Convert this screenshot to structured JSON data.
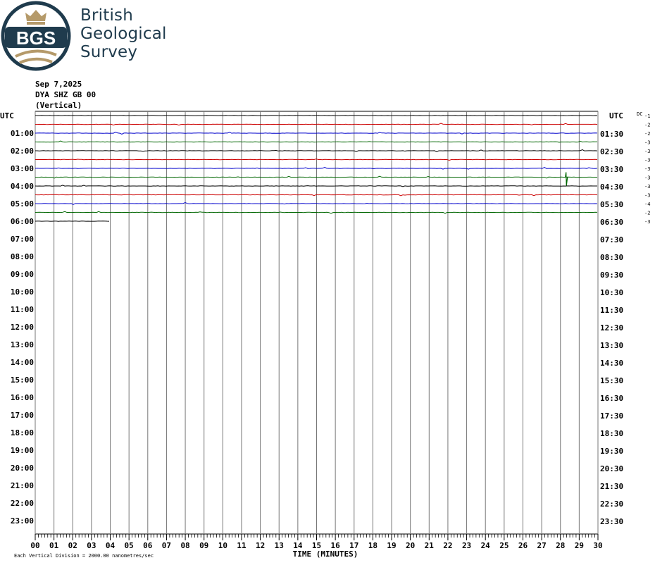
{
  "logo": {
    "abbrev": "BGS",
    "name_line1": "British",
    "name_line2": "Geological",
    "name_line3": "Survey"
  },
  "header": {
    "date": "Sep 7,2025",
    "station": "DYA SHZ GB 00",
    "component": "(Vertical)"
  },
  "colors": {
    "trace_black": "#000000",
    "trace_red": "#cc0000",
    "trace_blue": "#0000cc",
    "trace_green": "#006600",
    "grid": "#777777"
  },
  "chart_data": {
    "type": "line",
    "title": "",
    "xlabel": "TIME (MINUTES)",
    "x_ticks": [
      "00",
      "01",
      "02",
      "03",
      "04",
      "05",
      "06",
      "07",
      "08",
      "09",
      "10",
      "11",
      "12",
      "13",
      "14",
      "15",
      "16",
      "17",
      "18",
      "19",
      "20",
      "21",
      "22",
      "23",
      "24",
      "25",
      "26",
      "27",
      "28",
      "29",
      "30"
    ],
    "xlim": [
      0,
      30
    ],
    "left_axis_label": "UTC",
    "right_axis_label": "UTC",
    "left_hours": [
      "01:00",
      "02:00",
      "03:00",
      "04:00",
      "05:00",
      "06:00",
      "07:00",
      "08:00",
      "09:00",
      "10:00",
      "11:00",
      "12:00",
      "13:00",
      "14:00",
      "15:00",
      "16:00",
      "17:00",
      "18:00",
      "19:00",
      "20:00",
      "21:00",
      "22:00",
      "23:00"
    ],
    "right_hours": [
      "01:30",
      "02:30",
      "03:30",
      "04:30",
      "05:30",
      "06:30",
      "07:30",
      "08:30",
      "09:30",
      "10:30",
      "11:30",
      "12:30",
      "13:30",
      "14:30",
      "15:30",
      "16:30",
      "17:30",
      "18:30",
      "19:30",
      "20:30",
      "21:30",
      "22:30",
      "23:30"
    ],
    "dc_label": "DC",
    "dc_offsets": [
      "-1",
      "-2",
      "-2",
      "-3",
      "-3",
      "-3",
      "-3",
      "-3",
      "-3",
      "-3",
      "-4",
      "-2",
      "-3"
    ],
    "traces": [
      {
        "color": "black",
        "end_minute": 30
      },
      {
        "color": "red",
        "end_minute": 30
      },
      {
        "color": "blue",
        "end_minute": 30
      },
      {
        "color": "green",
        "end_minute": 30
      },
      {
        "color": "black",
        "end_minute": 30
      },
      {
        "color": "red",
        "end_minute": 30
      },
      {
        "color": "blue",
        "end_minute": 30
      },
      {
        "color": "green",
        "end_minute": 30
      },
      {
        "color": "black",
        "end_minute": 30
      },
      {
        "color": "red",
        "end_minute": 30
      },
      {
        "color": "blue",
        "end_minute": 30
      },
      {
        "color": "green",
        "end_minute": 30
      },
      {
        "color": "black",
        "end_minute": 4
      }
    ],
    "events": [
      {
        "trace_index": 7,
        "minute": 28.3,
        "amplitude": "large"
      }
    ],
    "scale_note": "Each Vertical Division = 2000.00 nanometres/sec"
  }
}
